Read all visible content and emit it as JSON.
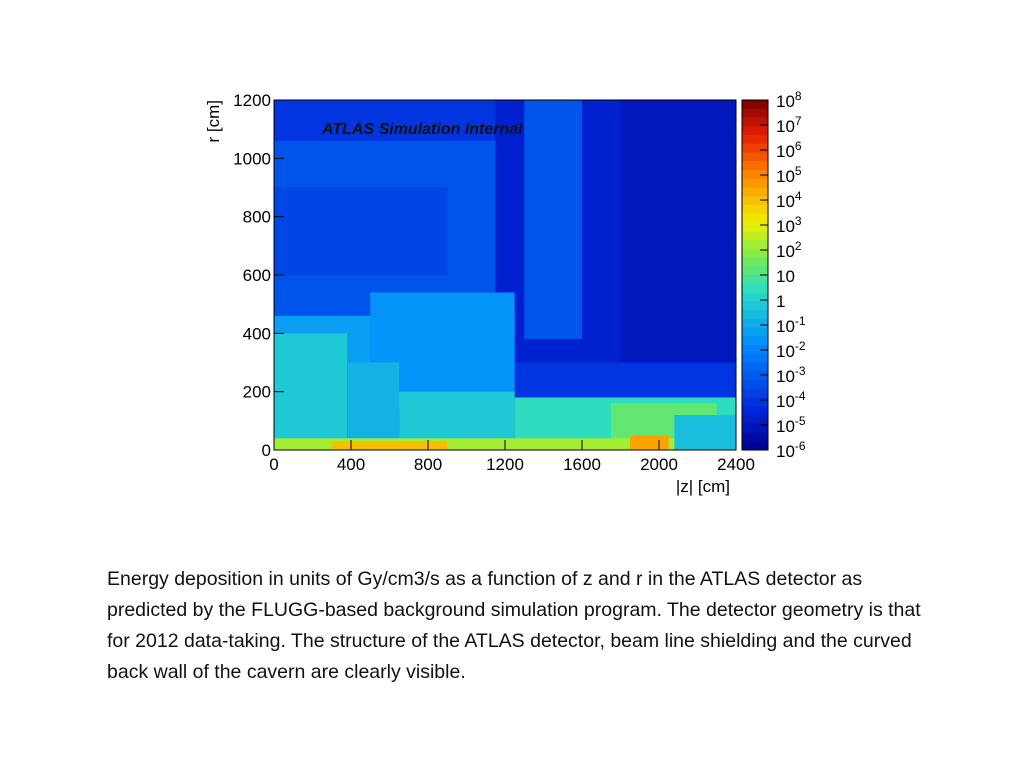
{
  "chart_data": {
    "type": "heatmap",
    "annotation": "ATLAS Simulation Internal",
    "xlabel": "|z| [cm]",
    "ylabel": "r [cm]",
    "xlim": [
      0,
      2400
    ],
    "ylim": [
      0,
      1200
    ],
    "x_ticks": [
      "0",
      "400",
      "800",
      "1200",
      "1600",
      "2000",
      "2400"
    ],
    "y_ticks": [
      "0",
      "200",
      "400",
      "600",
      "800",
      "1000",
      "1200"
    ],
    "colorbar": {
      "scale": "log",
      "min_exponent": -6,
      "max_exponent": 8,
      "labels": [
        {
          "base": "10",
          "exp": "8"
        },
        {
          "base": "10",
          "exp": "7"
        },
        {
          "base": "10",
          "exp": "6"
        },
        {
          "base": "10",
          "exp": "5"
        },
        {
          "base": "10",
          "exp": "4"
        },
        {
          "base": "10",
          "exp": "3"
        },
        {
          "base": "10",
          "exp": "2"
        },
        {
          "base": "10",
          "exp": ""
        },
        {
          "base": "1",
          "exp": ""
        },
        {
          "base": "10",
          "exp": "-1"
        },
        {
          "base": "10",
          "exp": "-2"
        },
        {
          "base": "10",
          "exp": "-3"
        },
        {
          "base": "10",
          "exp": "-4"
        },
        {
          "base": "10",
          "exp": "-5"
        },
        {
          "base": "10",
          "exp": "-6"
        }
      ]
    },
    "regions": [
      {
        "z": [
          0,
          2400
        ],
        "r": [
          0,
          1200
        ],
        "log_value": -4.0
      },
      {
        "z": [
          0,
          1250
        ],
        "r": [
          420,
          1060
        ],
        "log_value": -3.2
      },
      {
        "z": [
          0,
          900
        ],
        "r": [
          600,
          900
        ],
        "log_value": -3.6
      },
      {
        "z": [
          1150,
          2400
        ],
        "r": [
          300,
          1200
        ],
        "log_value": -4.6
      },
      {
        "z": [
          1300,
          1600
        ],
        "r": [
          380,
          1200
        ],
        "log_value": -3.2
      },
      {
        "z": [
          1800,
          2400
        ],
        "r": [
          300,
          1200
        ],
        "log_value": -5.0
      },
      {
        "z": [
          0,
          1250
        ],
        "r": [
          300,
          460
        ],
        "log_value": -1.3
      },
      {
        "z": [
          500,
          1250
        ],
        "r": [
          140,
          540
        ],
        "log_value": -1.6
      },
      {
        "z": [
          0,
          380
        ],
        "r": [
          0,
          400
        ],
        "log_value": -0.2
      },
      {
        "z": [
          380,
          650
        ],
        "r": [
          0,
          300
        ],
        "log_value": -0.8
      },
      {
        "z": [
          650,
          1250
        ],
        "r": [
          0,
          200
        ],
        "log_value": -0.2
      },
      {
        "z": [
          1250,
          2400
        ],
        "r": [
          0,
          180
        ],
        "log_value": 0.4
      },
      {
        "z": [
          1750,
          2300
        ],
        "r": [
          0,
          160
        ],
        "log_value": 1.3
      },
      {
        "z": [
          0,
          2400
        ],
        "r": [
          0,
          40
        ],
        "log_value": 2.2
      },
      {
        "z": [
          300,
          900
        ],
        "r": [
          0,
          30
        ],
        "log_value": 4.0
      },
      {
        "z": [
          1850,
          2050
        ],
        "r": [
          0,
          50
        ],
        "log_value": 4.5
      },
      {
        "z": [
          2080,
          2400
        ],
        "r": [
          0,
          120
        ],
        "log_value": -0.5
      }
    ]
  },
  "caption": "Energy deposition in units of Gy/cm3/s as a function of z and r in the ATLAS detector as predicted by the FLUGG-based background simulation program. The detector geometry is that for 2012 data-taking. The structure of the ATLAS detector, beam line shielding and the curved back wall of the cavern are clearly visible."
}
